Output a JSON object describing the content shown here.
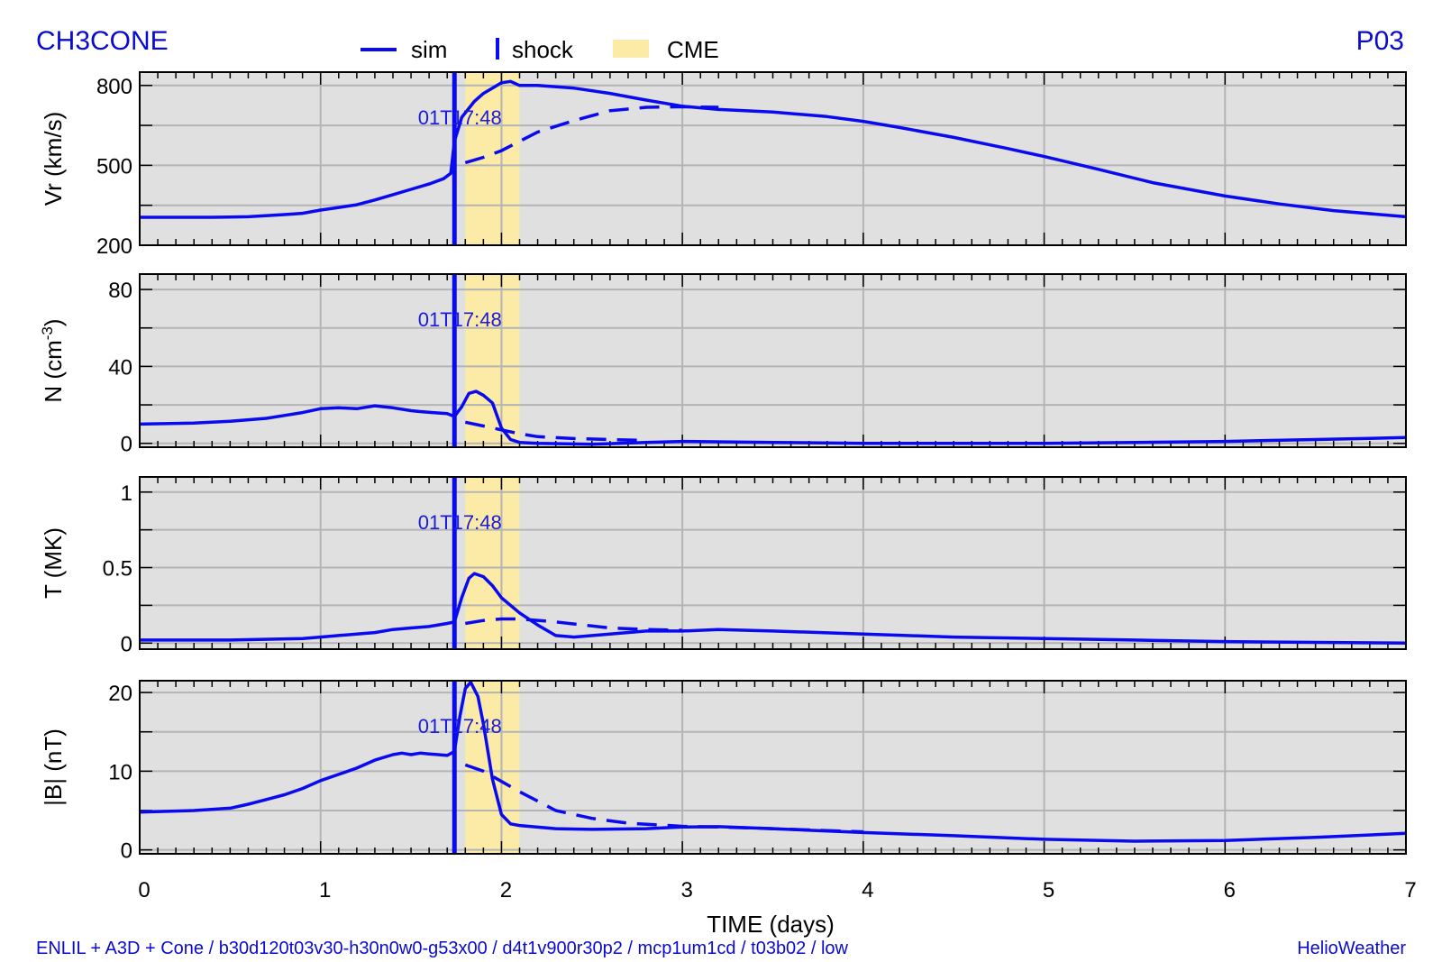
{
  "header": {
    "title_left": "CH3CONE",
    "title_right": "P03",
    "legend": [
      {
        "label": "sim",
        "kind": "line"
      },
      {
        "label": "shock",
        "kind": "bar"
      },
      {
        "label": "CME",
        "kind": "patch"
      }
    ]
  },
  "footer": {
    "left": "ENLIL + A3D + Cone / b30d120t03v30-h30n0w0-g53x00 / d4t1v900r30p2 / mcp1um1cd / t03b02 / low",
    "right": "HelioWeather"
  },
  "colors": {
    "series": "#0a0af0",
    "cme": "#fbeba6",
    "panel_bg": "#e0e0e0",
    "grid": "#b4b4b4",
    "text_blue": "#0a0ad0"
  },
  "chart_data": {
    "type": "line",
    "xlabel": "TIME (days)",
    "xlim": [
      0,
      7
    ],
    "xticks": [
      "0",
      "1",
      "2",
      "3",
      "4",
      "5",
      "6",
      "7"
    ],
    "shock": {
      "x": 1.74,
      "label": "01T17:48"
    },
    "cme": {
      "x": [
        1.8,
        2.1
      ]
    },
    "panels": [
      {
        "id": "vr",
        "ylabel": "Vr (km/s)",
        "ylim": [
          200,
          850
        ],
        "yticks": [
          200,
          500,
          800
        ],
        "sim": [
          [
            0,
            305
          ],
          [
            0.2,
            305
          ],
          [
            0.4,
            305
          ],
          [
            0.6,
            307
          ],
          [
            0.8,
            315
          ],
          [
            0.9,
            320
          ],
          [
            1.0,
            332
          ],
          [
            1.1,
            342
          ],
          [
            1.2,
            352
          ],
          [
            1.3,
            370
          ],
          [
            1.4,
            390
          ],
          [
            1.5,
            410
          ],
          [
            1.6,
            430
          ],
          [
            1.68,
            450
          ],
          [
            1.72,
            470
          ],
          [
            1.74,
            590
          ],
          [
            1.78,
            680
          ],
          [
            1.85,
            740
          ],
          [
            1.9,
            770
          ],
          [
            1.95,
            790
          ],
          [
            2.0,
            810
          ],
          [
            2.05,
            815
          ],
          [
            2.1,
            800
          ],
          [
            2.2,
            800
          ],
          [
            2.4,
            790
          ],
          [
            2.6,
            770
          ],
          [
            2.8,
            745
          ],
          [
            3.0,
            722
          ],
          [
            3.2,
            710
          ],
          [
            3.5,
            700
          ],
          [
            3.8,
            683
          ],
          [
            4.0,
            665
          ],
          [
            4.2,
            642
          ],
          [
            4.5,
            605
          ],
          [
            4.8,
            563
          ],
          [
            5.0,
            533
          ],
          [
            5.3,
            485
          ],
          [
            5.6,
            435
          ],
          [
            6.0,
            385
          ],
          [
            6.3,
            355
          ],
          [
            6.6,
            330
          ],
          [
            7.0,
            307
          ]
        ],
        "dashed": [
          [
            1.8,
            510
          ],
          [
            1.9,
            530
          ],
          [
            2.0,
            555
          ],
          [
            2.1,
            590
          ],
          [
            2.2,
            625
          ],
          [
            2.4,
            668
          ],
          [
            2.6,
            705
          ],
          [
            2.8,
            718
          ],
          [
            3.0,
            720
          ],
          [
            3.2,
            718
          ]
        ]
      },
      {
        "id": "n",
        "ylabel": "N (cm^-3)",
        "ylim": [
          -2,
          88
        ],
        "yticks": [
          0,
          40,
          80
        ],
        "sim": [
          [
            0,
            10
          ],
          [
            0.3,
            10.5
          ],
          [
            0.5,
            11.5
          ],
          [
            0.7,
            13
          ],
          [
            0.8,
            14.5
          ],
          [
            0.9,
            16
          ],
          [
            1.0,
            18
          ],
          [
            1.1,
            18.5
          ],
          [
            1.2,
            18
          ],
          [
            1.3,
            19.5
          ],
          [
            1.4,
            18.5
          ],
          [
            1.5,
            17
          ],
          [
            1.55,
            16.5
          ],
          [
            1.62,
            16
          ],
          [
            1.7,
            15.5
          ],
          [
            1.74,
            14
          ],
          [
            1.78,
            19
          ],
          [
            1.82,
            26
          ],
          [
            1.86,
            27
          ],
          [
            1.9,
            25
          ],
          [
            1.95,
            21
          ],
          [
            2.0,
            8
          ],
          [
            2.05,
            2
          ],
          [
            2.1,
            0.5
          ],
          [
            2.2,
            0
          ],
          [
            2.5,
            -0.5
          ],
          [
            2.8,
            0.5
          ],
          [
            3.0,
            1
          ],
          [
            3.5,
            0.5
          ],
          [
            4.0,
            0
          ],
          [
            5.0,
            0
          ],
          [
            5.5,
            0.5
          ],
          [
            6.0,
            1
          ],
          [
            6.5,
            2
          ],
          [
            7.0,
            3
          ]
        ],
        "dashed": [
          [
            1.8,
            11
          ],
          [
            1.9,
            9
          ],
          [
            2.0,
            7
          ],
          [
            2.1,
            5
          ],
          [
            2.2,
            3.5
          ],
          [
            2.4,
            2.5
          ],
          [
            2.6,
            2
          ],
          [
            2.8,
            1.5
          ]
        ]
      },
      {
        "id": "t",
        "ylabel": "T (MK)",
        "ylim": [
          -0.04,
          1.1
        ],
        "yticks": [
          0,
          0.5,
          1
        ],
        "tick_labels": [
          "0",
          "0.5",
          "1"
        ],
        "sim": [
          [
            0,
            0.02
          ],
          [
            0.5,
            0.02
          ],
          [
            0.9,
            0.03
          ],
          [
            1.0,
            0.04
          ],
          [
            1.1,
            0.05
          ],
          [
            1.2,
            0.06
          ],
          [
            1.3,
            0.07
          ],
          [
            1.4,
            0.09
          ],
          [
            1.5,
            0.1
          ],
          [
            1.6,
            0.11
          ],
          [
            1.7,
            0.13
          ],
          [
            1.74,
            0.14
          ],
          [
            1.78,
            0.3
          ],
          [
            1.82,
            0.43
          ],
          [
            1.85,
            0.46
          ],
          [
            1.9,
            0.44
          ],
          [
            1.95,
            0.38
          ],
          [
            2.0,
            0.3
          ],
          [
            2.1,
            0.2
          ],
          [
            2.2,
            0.12
          ],
          [
            2.3,
            0.05
          ],
          [
            2.4,
            0.04
          ],
          [
            2.6,
            0.06
          ],
          [
            2.8,
            0.08
          ],
          [
            3.0,
            0.08
          ],
          [
            3.2,
            0.09
          ],
          [
            3.5,
            0.08
          ],
          [
            4.0,
            0.06
          ],
          [
            4.5,
            0.04
          ],
          [
            5.0,
            0.03
          ],
          [
            5.5,
            0.02
          ],
          [
            6.0,
            0.01
          ],
          [
            6.5,
            0.005
          ],
          [
            7.0,
            0.0
          ]
        ],
        "dashed": [
          [
            1.8,
            0.13
          ],
          [
            1.9,
            0.15
          ],
          [
            2.0,
            0.16
          ],
          [
            2.1,
            0.16
          ],
          [
            2.3,
            0.14
          ],
          [
            2.6,
            0.1
          ],
          [
            2.8,
            0.09
          ],
          [
            3.0,
            0.085
          ]
        ]
      },
      {
        "id": "b",
        "ylabel": "|B| (nT)",
        "ylim": [
          -0.5,
          21.5
        ],
        "yticks": [
          0,
          10,
          20
        ],
        "sim": [
          [
            0,
            4.8
          ],
          [
            0.3,
            5
          ],
          [
            0.5,
            5.3
          ],
          [
            0.6,
            5.8
          ],
          [
            0.7,
            6.4
          ],
          [
            0.8,
            7
          ],
          [
            0.9,
            7.8
          ],
          [
            1.0,
            8.8
          ],
          [
            1.1,
            9.6
          ],
          [
            1.2,
            10.4
          ],
          [
            1.3,
            11.4
          ],
          [
            1.4,
            12.1
          ],
          [
            1.45,
            12.3
          ],
          [
            1.5,
            12.1
          ],
          [
            1.55,
            12.3
          ],
          [
            1.6,
            12.2
          ],
          [
            1.65,
            12.1
          ],
          [
            1.7,
            12
          ],
          [
            1.74,
            12.5
          ],
          [
            1.77,
            17
          ],
          [
            1.8,
            20.5
          ],
          [
            1.83,
            21.3
          ],
          [
            1.87,
            19.5
          ],
          [
            1.9,
            16
          ],
          [
            1.95,
            9
          ],
          [
            2.0,
            4.5
          ],
          [
            2.05,
            3.3
          ],
          [
            2.1,
            3.1
          ],
          [
            2.3,
            2.7
          ],
          [
            2.5,
            2.6
          ],
          [
            2.8,
            2.7
          ],
          [
            3.0,
            2.9
          ],
          [
            3.2,
            2.95
          ],
          [
            3.5,
            2.7
          ],
          [
            4.0,
            2.2
          ],
          [
            4.5,
            1.8
          ],
          [
            5.0,
            1.35
          ],
          [
            5.5,
            1.1
          ],
          [
            6.0,
            1.2
          ],
          [
            6.5,
            1.6
          ],
          [
            7.0,
            2.1
          ]
        ],
        "dashed": [
          [
            1.8,
            10.8
          ],
          [
            1.9,
            10
          ],
          [
            2.0,
            8.7
          ],
          [
            2.1,
            7.4
          ],
          [
            2.2,
            6.2
          ],
          [
            2.3,
            5
          ],
          [
            2.5,
            4
          ],
          [
            2.7,
            3.4
          ],
          [
            3.0,
            3
          ],
          [
            3.2,
            2.9
          ],
          [
            3.5,
            2.7
          ],
          [
            4.0,
            2.3
          ]
        ]
      }
    ]
  }
}
